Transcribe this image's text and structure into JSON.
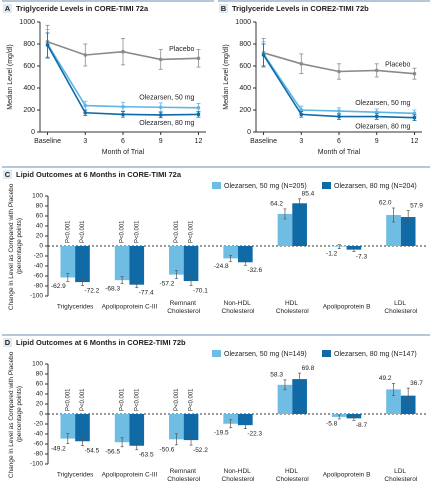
{
  "chart_data": [
    {
      "type": "line",
      "panel": "A",
      "title": "Triglyceride Levels in CORE-TIMI 72a",
      "ylabel": "Median Level (mg/dl)",
      "xlabel": "Month of Trial",
      "x": [
        0,
        3,
        6,
        9,
        12
      ],
      "xlim": [
        -0.6,
        12.6
      ],
      "xticks": [
        {
          "value": 0,
          "label": "Baseline"
        },
        3,
        6,
        9,
        12
      ],
      "ylim": [
        0,
        1000
      ],
      "yticks": [
        0,
        200,
        400,
        600,
        800,
        1000
      ],
      "series": [
        {
          "name": "Placebo",
          "color": "#8a8a8a",
          "values": [
            820,
            700,
            730,
            660,
            670
          ],
          "errors": [
            150,
            100,
            120,
            90,
            80
          ]
        },
        {
          "name": "Olezarsen, 50 mg",
          "color": "#5bb6e3",
          "values": [
            800,
            240,
            230,
            225,
            220
          ],
          "errors": [
            130,
            40,
            40,
            40,
            40
          ]
        },
        {
          "name": "Olezarsen, 80 mg",
          "color": "#0f6aa6",
          "values": [
            790,
            175,
            160,
            155,
            160
          ],
          "errors": [
            110,
            25,
            25,
            25,
            25
          ]
        }
      ]
    },
    {
      "type": "line",
      "panel": "B",
      "title": "Triglyceride Levels in CORE2-TIMI 72b",
      "ylabel": "Median Level (mg/dl)",
      "xlabel": "Month of Trial",
      "x": [
        0,
        3,
        6,
        9,
        12
      ],
      "xlim": [
        -0.6,
        12.6
      ],
      "xticks": [
        {
          "value": 0,
          "label": "Baseline"
        },
        3,
        6,
        9,
        12
      ],
      "ylim": [
        0,
        1000
      ],
      "yticks": [
        0,
        200,
        400,
        600,
        800,
        1000
      ],
      "series": [
        {
          "name": "Placebo",
          "color": "#8a8a8a",
          "values": [
            720,
            620,
            550,
            560,
            530
          ],
          "errors": [
            130,
            90,
            70,
            60,
            50
          ]
        },
        {
          "name": "Olezarsen, 50 mg",
          "color": "#5bb6e3",
          "values": [
            710,
            200,
            190,
            180,
            170
          ],
          "errors": [
            110,
            35,
            30,
            30,
            30
          ]
        },
        {
          "name": "Olezarsen, 80 mg",
          "color": "#0f6aa6",
          "values": [
            700,
            160,
            140,
            140,
            130
          ],
          "errors": [
            100,
            25,
            25,
            25,
            25
          ]
        }
      ]
    },
    {
      "type": "bar",
      "panel": "C",
      "title": "Lipid Outcomes at 6 Months in CORE-TIMI 72a",
      "ylabel": "Change in Level as Compared with Placebo (percentage points)",
      "categories": [
        "Triglycerides",
        "Apolipoprotein C-III",
        "Remnant Cholesterol",
        "Non-HDL Cholesterol",
        "HDL Cholesterol",
        "Apolipoprotein B",
        "LDL Cholesterol"
      ],
      "ylim": [
        -100,
        100
      ],
      "yticks": [
        -100,
        -80,
        -60,
        -40,
        -20,
        0,
        20,
        40,
        60,
        80,
        100
      ],
      "series": [
        {
          "name": "Olezarsen, 50 mg (N=205)",
          "color": "#6fbde3",
          "values": [
            -62.9,
            -68.3,
            -57.2,
            -24.8,
            64.2,
            -1.2,
            62.0
          ],
          "value_labels": [
            "-62.9",
            "-68.3",
            "-57.2",
            "-24.8",
            "64.2",
            "-1.2",
            "62.0"
          ],
          "errors": [
            8,
            7,
            8,
            6,
            10,
            4,
            14
          ],
          "p_labels": [
            "P<0.001",
            "P<0.001",
            "P<0.001",
            null,
            null,
            null,
            null
          ]
        },
        {
          "name": "Olezarsen, 80 mg (N=204)",
          "color": "#0f6aa6",
          "values": [
            -72.2,
            -77.4,
            -70.1,
            -32.6,
            85.4,
            -7.3,
            57.9
          ],
          "value_labels": [
            "-72.2",
            "-77.4",
            "-70.1",
            "-32.6",
            "85.4",
            "-7.3",
            "57.9"
          ],
          "errors": [
            7,
            6,
            9,
            6,
            9,
            4,
            13
          ],
          "p_labels": [
            "P<0.001",
            "P<0.001",
            "P<0.001",
            null,
            null,
            null,
            null
          ]
        }
      ]
    },
    {
      "type": "bar",
      "panel": "D",
      "title": "Lipid Outcomes at 6 Months in CORE2-TIMI 72b",
      "ylabel": "Change in Level as Compared with Placebo (percentage points)",
      "categories": [
        "Triglycerides",
        "Apolipoprotein C-III",
        "Remnant Cholesterol",
        "Non-HDL Cholesterol",
        "HDL Cholesterol",
        "Apolipoprotein B",
        "LDL Cholesterol"
      ],
      "ylim": [
        -100,
        100
      ],
      "yticks": [
        -100,
        -80,
        -60,
        -40,
        -20,
        0,
        20,
        40,
        60,
        80,
        100
      ],
      "series": [
        {
          "name": "Olezarsen, 50 mg (N=149)",
          "color": "#6fbde3",
          "values": [
            -49.2,
            -56.5,
            -50.6,
            -19.5,
            58.3,
            -5.8,
            49.2
          ],
          "value_labels": [
            "-49.2",
            "-56.5",
            "-50.6",
            "-19.5",
            "58.3",
            "-5.8",
            "49.2"
          ],
          "errors": [
            10,
            9,
            11,
            8,
            10,
            4,
            12
          ],
          "p_labels": [
            "P<0.001",
            "P<0.001",
            "P<0.001",
            null,
            null,
            null,
            null
          ]
        },
        {
          "name": "Olezarsen, 80 mg (N=147)",
          "color": "#0f6aa6",
          "values": [
            -54.5,
            -63.5,
            -52.2,
            -22.3,
            69.8,
            -8.7,
            36.7
          ],
          "value_labels": [
            "-54.5",
            "-63.5",
            "-52.2",
            "-22.3",
            "69.8",
            "-8.7",
            "36.7"
          ],
          "errors": [
            9,
            8,
            10,
            7,
            12,
            4,
            15
          ],
          "p_labels": [
            "P<0.001",
            "P<0.001",
            "P<0.001",
            null,
            null,
            null,
            null
          ]
        }
      ]
    }
  ]
}
